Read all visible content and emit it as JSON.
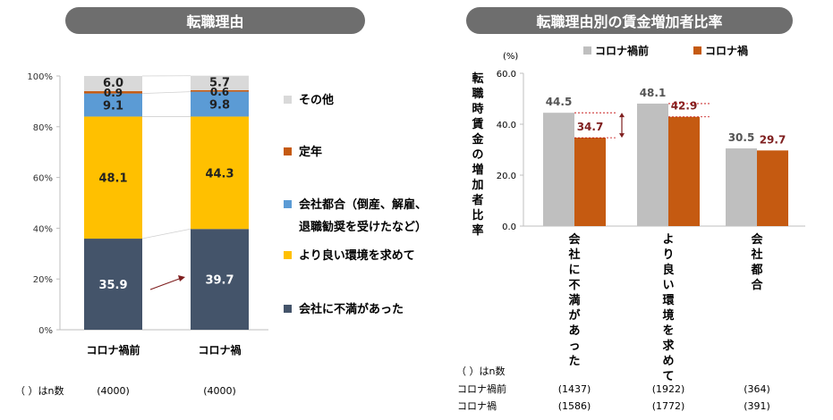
{
  "left_title": "転職理由",
  "right_title": "転職理由別の賃金増加者比率",
  "chart_data": [
    {
      "type": "bar",
      "stacked": true,
      "percent": true,
      "categories": [
        "コロナ禍前",
        "コロナ禍"
      ],
      "ylim": [
        0,
        100
      ],
      "yticks": [
        "0%",
        "20%",
        "40%",
        "60%",
        "80%",
        "100%"
      ],
      "series": [
        {
          "name": "会社に不満があった",
          "values": [
            35.9,
            39.7
          ],
          "color": "#44546a",
          "label_color": "#ffffff"
        },
        {
          "name": "より良い環境を求めて",
          "values": [
            48.1,
            44.3
          ],
          "color": "#ffc000",
          "label_color": "#222222"
        },
        {
          "name": "会社都合（倒産、解雇、退職勧奨を受けたなど）",
          "values": [
            9.1,
            9.8
          ],
          "color": "#5b9bd5",
          "label_color": "#222222"
        },
        {
          "name": "定年",
          "values": [
            0.9,
            0.6
          ],
          "color": "#c55a11",
          "label_color": "#222222"
        },
        {
          "name": "その他",
          "values": [
            6.0,
            5.7
          ],
          "color": "#d9d9d9",
          "label_color": "#222222"
        }
      ],
      "legend_lines": [
        [
          "会社都合（倒産、解雇、",
          "退職勧奨を受けたなど）"
        ]
      ],
      "n_label": "（ ）はn数",
      "n_values": [
        "(4000)",
        "(4000)"
      ]
    },
    {
      "type": "bar",
      "categories": [
        "会社に不満があった",
        "より良い環境を求めて",
        "会社都合"
      ],
      "ylabel": "転職時賃金の増加者比率",
      "unit": "(%)",
      "ylim": [
        0,
        60
      ],
      "yticks": [
        "0.0",
        "20.0",
        "40.0",
        "60.0"
      ],
      "series": [
        {
          "name": "コロナ禍前",
          "values": [
            44.5,
            48.1,
            30.5
          ],
          "color": "#bfbfbf",
          "label_color": "#555555"
        },
        {
          "name": "コロナ禍",
          "values": [
            34.7,
            42.9,
            29.7
          ],
          "color": "#c55a11",
          "label_color": "#7f1f1f"
        }
      ],
      "n_label": "（ ）はn数",
      "n_rows": [
        {
          "label": "コロナ禍前",
          "values": [
            "(1437)",
            "(1922)",
            "(364)"
          ]
        },
        {
          "label": "コロナ禍",
          "values": [
            "(1586)",
            "(1772)",
            "(391)"
          ]
        }
      ]
    }
  ]
}
